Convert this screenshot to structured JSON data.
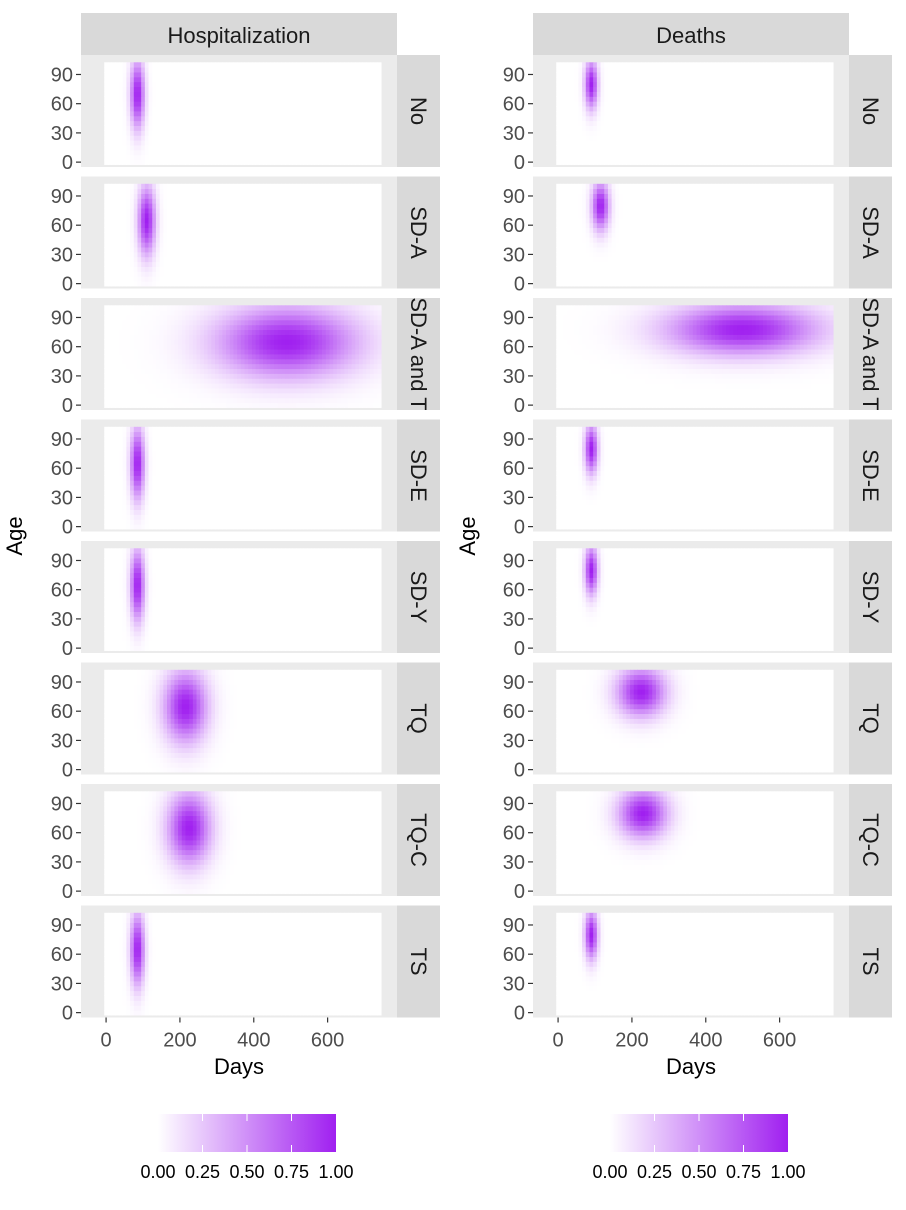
{
  "chart_data": [
    {
      "type": "heatmap",
      "column_title": "Hospitalization",
      "xlabel": "Days",
      "ylabel": "Age",
      "x_ticks": [
        0,
        200,
        400,
        600
      ],
      "y_ticks": [
        0,
        30,
        60,
        90
      ],
      "xlim": [
        -30,
        750
      ],
      "ylim": [
        -5,
        110
      ],
      "color_scale": {
        "low": "#ffffff",
        "high": "#a020f0"
      },
      "legend_ticks": [
        "0.00",
        "0.25",
        "0.50",
        "0.75",
        "1.00"
      ],
      "facets": [
        {
          "label": "No",
          "peak_day": 85,
          "day_spread": 13,
          "peak_age": 70,
          "age_spread": 24
        },
        {
          "label": "SD-A",
          "peak_day": 110,
          "day_spread": 16,
          "peak_age": 65,
          "age_spread": 24
        },
        {
          "label": "SD-A and T",
          "peak_day": 490,
          "day_spread": 130,
          "peak_age": 65,
          "age_spread": 25
        },
        {
          "label": "SD-E",
          "peak_day": 85,
          "day_spread": 13,
          "peak_age": 65,
          "age_spread": 25
        },
        {
          "label": "SD-Y",
          "peak_day": 85,
          "day_spread": 13,
          "peak_age": 65,
          "age_spread": 25
        },
        {
          "label": "TQ",
          "peak_day": 215,
          "day_spread": 40,
          "peak_age": 65,
          "age_spread": 25
        },
        {
          "label": "TQ-C",
          "peak_day": 225,
          "day_spread": 40,
          "peak_age": 65,
          "age_spread": 25
        },
        {
          "label": "TS",
          "peak_day": 85,
          "day_spread": 13,
          "peak_age": 65,
          "age_spread": 25
        }
      ]
    },
    {
      "type": "heatmap",
      "column_title": "Deaths",
      "xlabel": "Days",
      "ylabel": "Age",
      "x_ticks": [
        0,
        200,
        400,
        600
      ],
      "y_ticks": [
        0,
        30,
        60,
        90
      ],
      "xlim": [
        -30,
        750
      ],
      "ylim": [
        -5,
        110
      ],
      "color_scale": {
        "low": "#ffffff",
        "high": "#a020f0"
      },
      "legend_ticks": [
        "0.00",
        "0.25",
        "0.50",
        "0.75",
        "1.00"
      ],
      "facets": [
        {
          "label": "No",
          "peak_day": 90,
          "day_spread": 12,
          "peak_age": 80,
          "age_spread": 17
        },
        {
          "label": "SD-A",
          "peak_day": 115,
          "day_spread": 16,
          "peak_age": 80,
          "age_spread": 17
        },
        {
          "label": "SD-A and T",
          "peak_day": 500,
          "day_spread": 140,
          "peak_age": 78,
          "age_spread": 18
        },
        {
          "label": "SD-E",
          "peak_day": 90,
          "day_spread": 12,
          "peak_age": 80,
          "age_spread": 17
        },
        {
          "label": "SD-Y",
          "peak_day": 90,
          "day_spread": 12,
          "peak_age": 80,
          "age_spread": 17
        },
        {
          "label": "TQ",
          "peak_day": 225,
          "day_spread": 45,
          "peak_age": 80,
          "age_spread": 17
        },
        {
          "label": "TQ-C",
          "peak_day": 230,
          "day_spread": 45,
          "peak_age": 80,
          "age_spread": 17
        },
        {
          "label": "TS",
          "peak_day": 90,
          "day_spread": 12,
          "peak_age": 80,
          "age_spread": 17
        }
      ]
    }
  ]
}
